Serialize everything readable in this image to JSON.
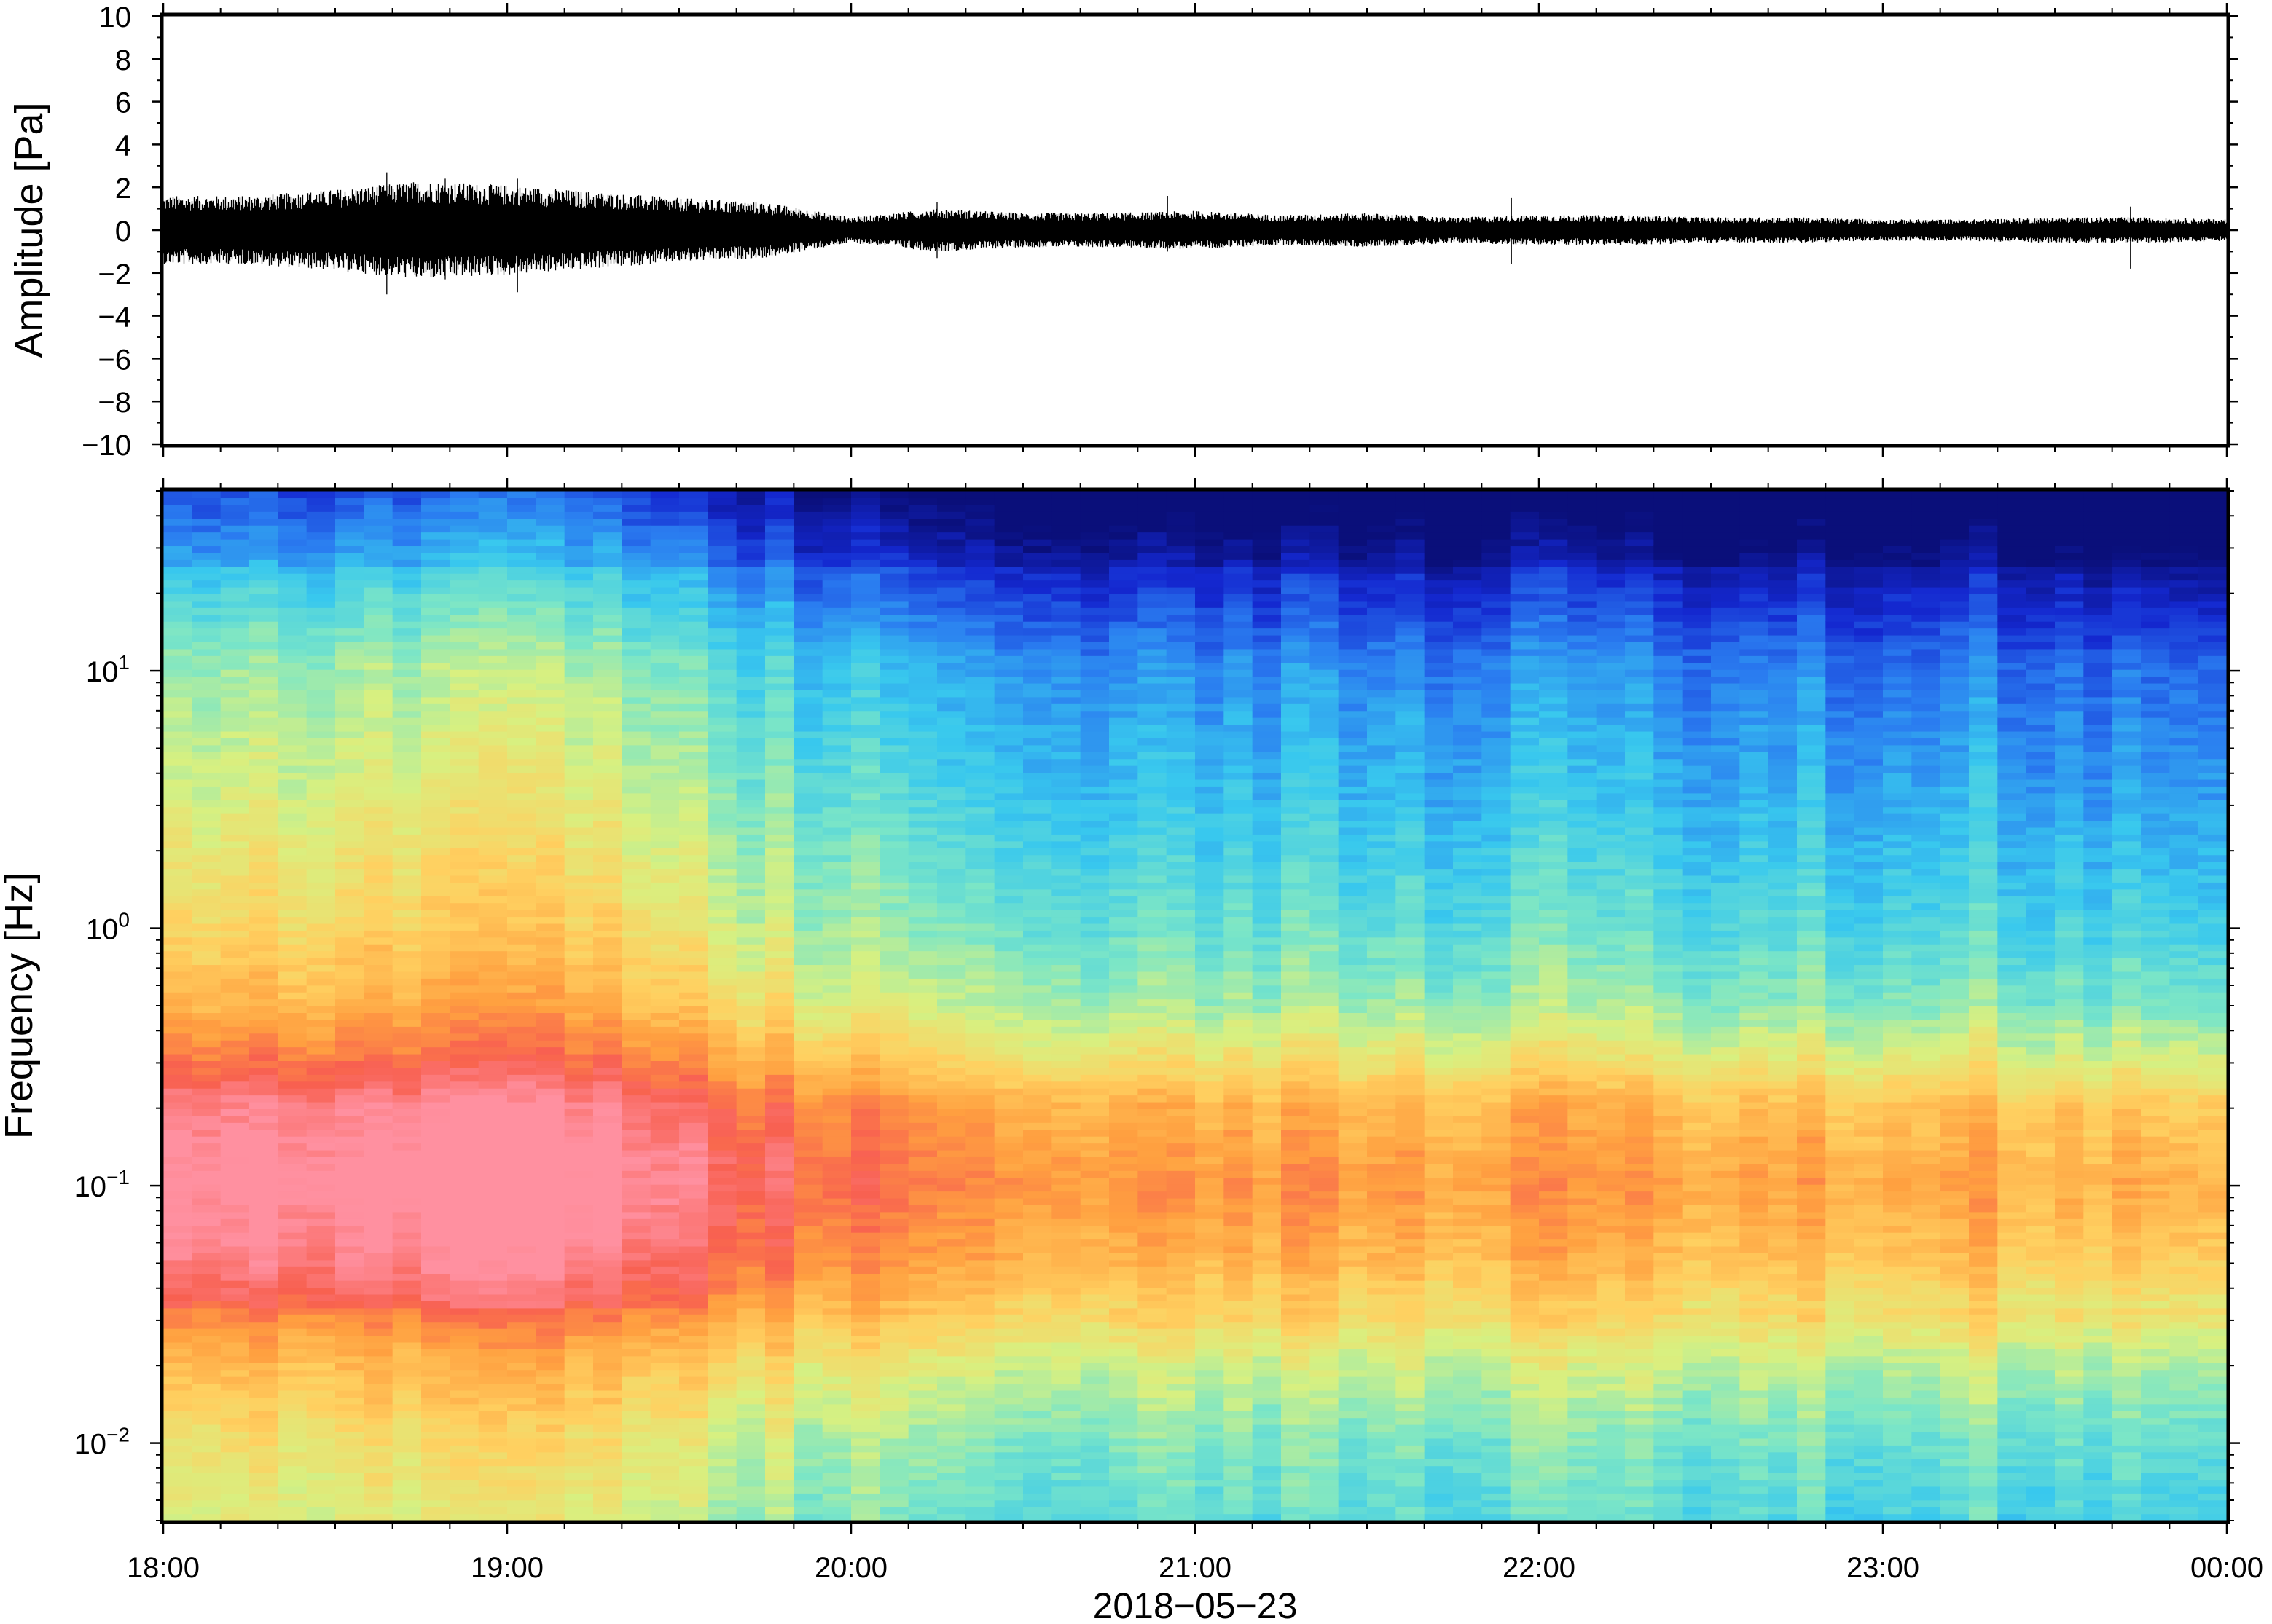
{
  "chart_data": [
    {
      "type": "line",
      "ylabel": "Amplitude [Pa]",
      "ylim": [
        -10,
        10
      ],
      "yticks": [
        {
          "value": 10,
          "label": "10"
        },
        {
          "value": 8,
          "label": "8"
        },
        {
          "value": 6,
          "label": "6"
        },
        {
          "value": 4,
          "label": "4"
        },
        {
          "value": 2,
          "label": "2"
        },
        {
          "value": 0,
          "label": "0"
        },
        {
          "value": -2,
          "label": "−2"
        },
        {
          "value": -4,
          "label": "−4"
        },
        {
          "value": -6,
          "label": "−6"
        },
        {
          "value": -8,
          "label": "−8"
        },
        {
          "value": -10,
          "label": "−10"
        }
      ],
      "xlim": [
        "2018-05-23 18:00",
        "2018-05-24 00:00"
      ],
      "grid": false,
      "series": [
        {
          "x_hours": [
            18.0,
            18.25,
            18.5,
            18.75,
            19.0,
            19.25,
            19.5,
            19.75,
            20.0,
            20.25,
            20.5,
            20.75,
            21.0,
            21.25,
            21.5,
            21.75,
            22.0,
            22.25,
            22.5,
            22.75,
            23.0,
            23.25,
            23.5,
            23.75,
            24.0
          ],
          "envelope_pa": [
            1.6,
            1.6,
            1.9,
            2.3,
            2.1,
            1.8,
            1.5,
            1.3,
            0.6,
            1.0,
            0.8,
            0.8,
            0.9,
            0.7,
            0.8,
            0.6,
            0.7,
            0.7,
            0.6,
            0.6,
            0.5,
            0.5,
            0.6,
            0.6,
            0.5
          ],
          "peaks": [
            {
              "hour": 18.65,
              "max": 2.7,
              "min": -3.0
            },
            {
              "hour": 18.82,
              "max": 2.4,
              "min": -2.3
            },
            {
              "hour": 19.03,
              "max": 2.4,
              "min": -2.9
            },
            {
              "hour": 20.25,
              "max": 1.3,
              "min": -1.3
            },
            {
              "hour": 20.92,
              "max": 1.6,
              "min": -1.0
            },
            {
              "hour": 21.92,
              "max": 1.5,
              "min": -1.6
            },
            {
              "hour": 23.72,
              "max": 1.1,
              "min": -1.8
            }
          ]
        }
      ]
    },
    {
      "type": "heatmap",
      "ylabel": "Frequency [Hz]",
      "yscale": "log",
      "ylim_hz": [
        0.005,
        50
      ],
      "yticks": [
        {
          "value": 10,
          "base": "10",
          "exp": "1"
        },
        {
          "value": 1,
          "base": "10",
          "exp": "0"
        },
        {
          "value": 0.1,
          "base": "10",
          "exp": "−1"
        },
        {
          "value": 0.01,
          "base": "10",
          "exp": "−2"
        }
      ],
      "xlabel": "2018−05−23",
      "xlim": [
        "2018-05-23 18:00",
        "2018-05-24 00:00"
      ],
      "xticks": [
        "18:00",
        "19:00",
        "20:00",
        "21:00",
        "22:00",
        "23:00",
        "00:00"
      ],
      "colormap": "rainbow (dark blue = low power, light red/pink = high power)",
      "colormap_stops": [
        "#0a0f7a",
        "#1428d0",
        "#2a7cf0",
        "#38c8ee",
        "#7ce6c6",
        "#d8f080",
        "#ffd060",
        "#ffa040",
        "#f86050",
        "#ff90a0"
      ],
      "columns": 72,
      "time_trend_early_to_late": [
        0.58,
        0.58,
        0.6,
        0.62,
        0.63,
        0.6,
        0.56,
        0.5,
        0.46,
        0.44,
        0.43,
        0.41,
        0.38,
        0.41,
        0.4,
        0.38,
        0.41,
        0.39,
        0.37,
        0.38,
        0.38,
        0.39,
        0.36,
        0.37,
        0.37
      ],
      "freq_profile": [
        {
          "hz": 50,
          "level": 0.02
        },
        {
          "hz": 30,
          "level": 0.12
        },
        {
          "hz": 20,
          "level": 0.2
        },
        {
          "hz": 10,
          "level": 0.32
        },
        {
          "hz": 3,
          "level": 0.4
        },
        {
          "hz": 1,
          "level": 0.48
        },
        {
          "hz": 0.5,
          "level": 0.56
        },
        {
          "hz": 0.3,
          "level": 0.68
        },
        {
          "hz": 0.2,
          "level": 0.8
        },
        {
          "hz": 0.1,
          "level": 0.86
        },
        {
          "hz": 0.05,
          "level": 0.8
        },
        {
          "hz": 0.03,
          "level": 0.7
        },
        {
          "hz": 0.02,
          "level": 0.6
        },
        {
          "hz": 0.01,
          "level": 0.5
        },
        {
          "hz": 0.005,
          "level": 0.45
        }
      ]
    }
  ]
}
